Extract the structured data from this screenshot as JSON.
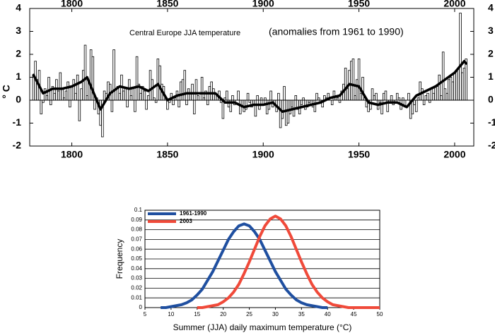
{
  "chart_data": [
    {
      "type": "step-bar",
      "title": "Central Europe JJA temperature",
      "subtitle": "(anomalies from 1961 to 1990)",
      "ylabel": "° C",
      "xlim": [
        1778,
        2010
      ],
      "xticks": [
        1800,
        1850,
        1900,
        1950,
        2000
      ],
      "ylim": [
        -2,
        4
      ],
      "yticks": [
        -2,
        -1,
        0,
        1,
        2,
        3,
        4
      ],
      "color": "#000000",
      "x": [
        1780,
        1781,
        1782,
        1783,
        1784,
        1785,
        1786,
        1787,
        1788,
        1789,
        1790,
        1791,
        1792,
        1793,
        1794,
        1795,
        1796,
        1797,
        1798,
        1799,
        1800,
        1801,
        1802,
        1803,
        1804,
        1805,
        1806,
        1807,
        1808,
        1809,
        1810,
        1811,
        1812,
        1813,
        1814,
        1815,
        1816,
        1817,
        1818,
        1819,
        1820,
        1821,
        1822,
        1823,
        1824,
        1825,
        1826,
        1827,
        1828,
        1829,
        1830,
        1831,
        1832,
        1833,
        1834,
        1835,
        1836,
        1837,
        1838,
        1839,
        1840,
        1841,
        1842,
        1843,
        1844,
        1845,
        1846,
        1847,
        1848,
        1849,
        1850,
        1851,
        1852,
        1853,
        1854,
        1855,
        1856,
        1857,
        1858,
        1859,
        1860,
        1861,
        1862,
        1863,
        1864,
        1865,
        1866,
        1867,
        1868,
        1869,
        1870,
        1871,
        1872,
        1873,
        1874,
        1875,
        1876,
        1877,
        1878,
        1879,
        1880,
        1881,
        1882,
        1883,
        1884,
        1885,
        1886,
        1887,
        1888,
        1889,
        1890,
        1891,
        1892,
        1893,
        1894,
        1895,
        1896,
        1897,
        1898,
        1899,
        1900,
        1901,
        1902,
        1903,
        1904,
        1905,
        1906,
        1907,
        1908,
        1909,
        1910,
        1911,
        1912,
        1913,
        1914,
        1915,
        1916,
        1917,
        1918,
        1919,
        1920,
        1921,
        1922,
        1923,
        1924,
        1925,
        1926,
        1927,
        1928,
        1929,
        1930,
        1931,
        1932,
        1933,
        1934,
        1935,
        1936,
        1937,
        1938,
        1939,
        1940,
        1941,
        1942,
        1943,
        1944,
        1945,
        1946,
        1947,
        1948,
        1949,
        1950,
        1951,
        1952,
        1953,
        1954,
        1955,
        1956,
        1957,
        1958,
        1959,
        1960,
        1961,
        1962,
        1963,
        1964,
        1965,
        1966,
        1967,
        1968,
        1969,
        1970,
        1971,
        1972,
        1973,
        1974,
        1975,
        1976,
        1977,
        1978,
        1979,
        1980,
        1981,
        1982,
        1983,
        1984,
        1985,
        1986,
        1987,
        1988,
        1989,
        1990,
        1991,
        1992,
        1993,
        1994,
        1995,
        1996,
        1997,
        1998,
        1999,
        2000,
        2001,
        2002,
        2003,
        2004,
        2005,
        2006
      ],
      "values": [
        1.1,
        1.7,
        0.9,
        1.3,
        -0.6,
        -0.1,
        0.5,
        0.2,
        1.0,
        -0.2,
        0.6,
        0.3,
        0.9,
        0.4,
        1.2,
        0.5,
        0.1,
        0.4,
        0.8,
        -0.3,
        0.6,
        0.9,
        0.3,
        1.1,
        -0.9,
        0.5,
        1.3,
        2.4,
        0.2,
        0.8,
        2.2,
        1.9,
        -0.4,
        0.1,
        -0.6,
        -1.1,
        -1.6,
        0.4,
        0.3,
        0.8,
        0.7,
        -0.5,
        2.2,
        0.0,
        0.6,
        0.3,
        1.1,
        0.4,
        0.5,
        -0.3,
        0.9,
        0.2,
        0.5,
        -0.5,
        1.9,
        0.7,
        0.3,
        0.6,
        0.4,
        -0.4,
        0.2,
        1.3,
        0.9,
        0.1,
        -0.1,
        1.8,
        1.5,
        0.7,
        0.6,
        0.1,
        -0.4,
        -0.1,
        0.3,
        -0.2,
        0.1,
        0.4,
        -0.3,
        0.8,
        0.9,
        1.3,
        -0.2,
        0.5,
        0.3,
        0.7,
        -0.6,
        0.9,
        0.2,
        0.0,
        1.0,
        0.1,
        0.4,
        -0.2,
        0.6,
        0.8,
        0.5,
        0.3,
        0.2,
        0.4,
        -0.1,
        -0.8,
        0.1,
        0.4,
        -0.3,
        -0.5,
        0.2,
        -0.2,
        0.0,
        0.4,
        -0.6,
        -0.3,
        -0.5,
        -0.4,
        0.3,
        -0.1,
        -0.3,
        -0.2,
        -0.7,
        0.2,
        -0.4,
        0.1,
        -0.2,
        0.1,
        -0.6,
        -0.4,
        0.4,
        -0.3,
        -0.2,
        -0.5,
        0.3,
        -1.2,
        -0.8,
        0.6,
        -1.1,
        -1.0,
        -0.6,
        -0.3,
        -0.7,
        0.2,
        -0.4,
        -0.6,
        -0.2,
        0.1,
        -0.4,
        -0.3,
        -0.1,
        -0.2,
        -0.3,
        -0.5,
        0.3,
        0.1,
        -0.1,
        -0.3,
        0.2,
        0.1,
        0.3,
        0.0,
        -0.2,
        0.4,
        0.2,
        0.1,
        -0.1,
        0.4,
        0.7,
        1.4,
        0.5,
        1.3,
        1.7,
        1.8,
        0.2,
        0.9,
        1.8,
        0.3,
        1.0,
        0.1,
        -0.3,
        -0.5,
        -0.4,
        0.5,
        0.2,
        0.3,
        -0.4,
        -0.1,
        -0.6,
        0.3,
        0.4,
        -0.5,
        -0.1,
        0.2,
        -0.2,
        0.0,
        0.3,
        0.1,
        -0.4,
        0.1,
        -0.3,
        0.0,
        0.3,
        -0.8,
        -0.6,
        -0.2,
        -0.5,
        0.1,
        0.8,
        0.5,
        -0.2,
        0.2,
        0.3,
        -0.1,
        0.5,
        0.3,
        0.6,
        0.6,
        1.1,
        0.2,
        2.1,
        0.5,
        0.3,
        0.9,
        1.0,
        0.8,
        1.2,
        1.3,
        1.4,
        3.8,
        1.2,
        1.4,
        1.8
      ],
      "smooth": {
        "x": [
          1780,
          1785,
          1790,
          1795,
          1800,
          1805,
          1808,
          1810,
          1815,
          1820,
          1825,
          1830,
          1835,
          1840,
          1845,
          1850,
          1855,
          1860,
          1865,
          1870,
          1875,
          1880,
          1885,
          1890,
          1895,
          1900,
          1905,
          1910,
          1915,
          1920,
          1925,
          1930,
          1935,
          1940,
          1945,
          1950,
          1955,
          1960,
          1965,
          1970,
          1975,
          1980,
          1985,
          1990,
          1995,
          2000,
          2005,
          2006
        ],
        "values": [
          1.1,
          0.3,
          0.5,
          0.5,
          0.6,
          0.8,
          1.0,
          0.6,
          -0.4,
          0.3,
          0.6,
          0.5,
          0.6,
          0.4,
          0.7,
          0.0,
          0.2,
          0.3,
          0.3,
          0.3,
          0.3,
          -0.1,
          -0.1,
          -0.3,
          -0.2,
          -0.2,
          -0.1,
          -0.5,
          -0.4,
          -0.3,
          -0.2,
          -0.1,
          0.1,
          0.2,
          0.7,
          0.6,
          -0.1,
          -0.2,
          -0.1,
          -0.1,
          -0.3,
          0.2,
          0.4,
          0.6,
          0.9,
          1.2,
          1.7,
          1.6
        ],
        "color": "#000000"
      }
    },
    {
      "type": "line",
      "xlabel": "Summer (JJA) daily maximum temperature (°C)",
      "ylabel": "Frequency",
      "xlim": [
        5,
        50
      ],
      "xticks": [
        5,
        10,
        15,
        20,
        25,
        30,
        35,
        40,
        45,
        50
      ],
      "ylim": [
        0,
        0.1
      ],
      "yticks": [
        0,
        0.01,
        0.02,
        0.03,
        0.04,
        0.05,
        0.06,
        0.07,
        0.08,
        0.09,
        0.1
      ],
      "grid": true,
      "legend": "top-left",
      "series": [
        {
          "name": "1961-1990",
          "color": "#1f4fa0",
          "x": [
            8,
            9,
            10,
            11,
            12,
            13,
            14,
            15,
            16,
            17,
            18,
            19,
            20,
            21,
            22,
            23,
            24,
            25,
            26,
            27,
            28,
            29,
            30,
            31,
            32,
            33,
            34,
            35,
            36,
            37,
            38,
            39,
            40
          ],
          "values": [
            0.0,
            0.0,
            0.001,
            0.002,
            0.003,
            0.005,
            0.008,
            0.013,
            0.019,
            0.028,
            0.037,
            0.048,
            0.059,
            0.07,
            0.078,
            0.084,
            0.086,
            0.084,
            0.078,
            0.07,
            0.059,
            0.048,
            0.037,
            0.028,
            0.019,
            0.013,
            0.008,
            0.005,
            0.003,
            0.002,
            0.001,
            0.0,
            0.0
          ]
        },
        {
          "name": "2003",
          "color": "#f04a3a",
          "x": [
            15,
            16,
            17,
            18,
            19,
            20,
            21,
            22,
            23,
            24,
            25,
            26,
            27,
            28,
            29,
            30,
            31,
            32,
            33,
            34,
            35,
            36,
            37,
            38,
            39,
            40,
            41,
            42,
            43,
            44,
            45,
            46,
            47,
            48,
            49,
            50
          ],
          "values": [
            0.0,
            0.0,
            0.001,
            0.002,
            0.003,
            0.006,
            0.01,
            0.016,
            0.024,
            0.035,
            0.047,
            0.06,
            0.073,
            0.084,
            0.091,
            0.094,
            0.091,
            0.084,
            0.073,
            0.06,
            0.047,
            0.035,
            0.024,
            0.016,
            0.01,
            0.006,
            0.003,
            0.002,
            0.001,
            0.0,
            0.0,
            0.0,
            0.0,
            0.0,
            0.0,
            0.0
          ]
        }
      ]
    }
  ]
}
